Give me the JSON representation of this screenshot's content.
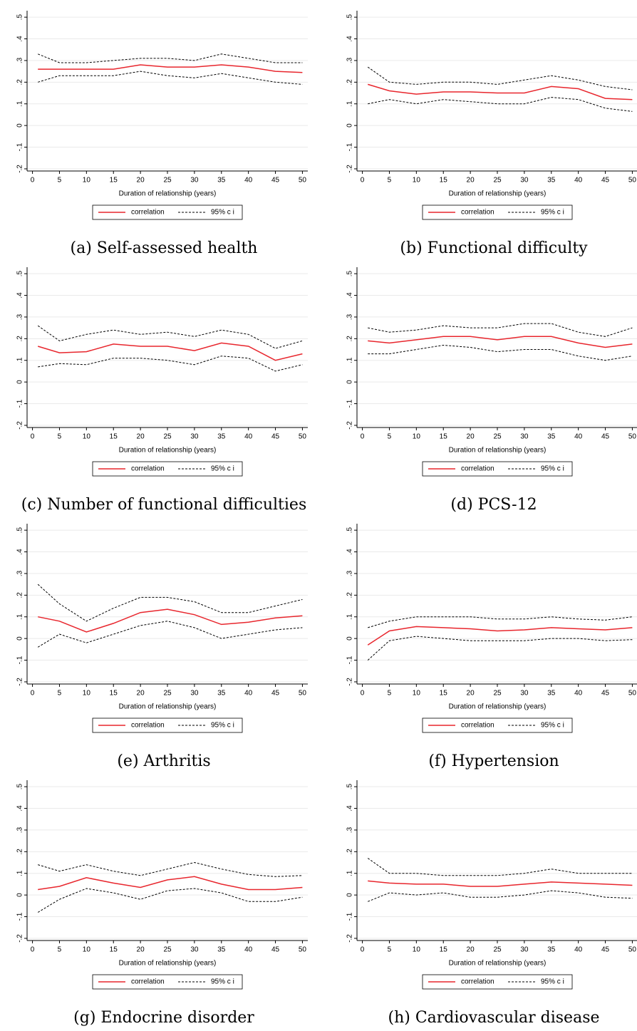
{
  "chart_data": [
    {
      "type": "line",
      "caption": "(a) Self-assessed health",
      "x_label": "Duration of relationship (years)",
      "x": [
        1,
        5,
        10,
        15,
        20,
        25,
        30,
        35,
        40,
        45,
        50
      ],
      "series": [
        {
          "name": "correlation",
          "color": "#e8262d",
          "values": [
            0.26,
            0.26,
            0.26,
            0.26,
            0.28,
            0.27,
            0.27,
            0.28,
            0.27,
            0.25,
            0.245
          ]
        },
        {
          "name": "95% c i",
          "color": "#000000",
          "dashed": true,
          "upper": [
            0.33,
            0.29,
            0.29,
            0.3,
            0.31,
            0.31,
            0.3,
            0.33,
            0.31,
            0.29,
            0.29
          ],
          "lower": [
            0.2,
            0.23,
            0.23,
            0.23,
            0.25,
            0.23,
            0.22,
            0.24,
            0.22,
            0.2,
            0.19
          ]
        }
      ],
      "xlim": [
        -1,
        51
      ],
      "ylim": [
        -0.21,
        0.53
      ],
      "xticks": [
        0,
        5,
        10,
        15,
        20,
        25,
        30,
        35,
        40,
        45,
        50
      ],
      "yticks": [
        {
          "value": -0.2,
          "label": "-.2"
        },
        {
          "value": -0.1,
          "label": "-.1"
        },
        0,
        {
          "value": 0.1,
          "label": ".1"
        },
        {
          "value": 0.2,
          "label": ".2"
        },
        {
          "value": 0.3,
          "label": ".3"
        },
        {
          "value": 0.4,
          "label": ".4"
        },
        {
          "value": 0.5,
          "label": ".5"
        }
      ],
      "grid": true
    },
    {
      "type": "line",
      "caption": "(b) Functional difficulty",
      "x_label": "Duration of relationship (years)",
      "x": [
        1,
        5,
        10,
        15,
        20,
        25,
        30,
        35,
        40,
        45,
        50
      ],
      "series": [
        {
          "name": "correlation",
          "color": "#e8262d",
          "values": [
            0.19,
            0.16,
            0.145,
            0.155,
            0.155,
            0.15,
            0.15,
            0.18,
            0.17,
            0.125,
            0.12
          ]
        },
        {
          "name": "95% c i",
          "color": "#000000",
          "dashed": true,
          "upper": [
            0.27,
            0.2,
            0.19,
            0.2,
            0.2,
            0.19,
            0.21,
            0.23,
            0.21,
            0.18,
            0.165
          ],
          "lower": [
            0.1,
            0.12,
            0.1,
            0.12,
            0.11,
            0.1,
            0.1,
            0.13,
            0.12,
            0.08,
            0.065
          ]
        }
      ],
      "xlim": [
        -1,
        51
      ],
      "ylim": [
        -0.21,
        0.53
      ],
      "xticks": [
        0,
        5,
        10,
        15,
        20,
        25,
        30,
        35,
        40,
        45,
        50
      ],
      "yticks": [
        {
          "value": -0.2,
          "label": "-.2"
        },
        {
          "value": -0.1,
          "label": "-.1"
        },
        0,
        {
          "value": 0.1,
          "label": ".1"
        },
        {
          "value": 0.2,
          "label": ".2"
        },
        {
          "value": 0.3,
          "label": ".3"
        },
        {
          "value": 0.4,
          "label": ".4"
        },
        {
          "value": 0.5,
          "label": ".5"
        }
      ],
      "grid": true
    },
    {
      "type": "line",
      "caption": "(c) Number of functional difficulties",
      "x_label": "Duration of relationship (years)",
      "x": [
        1,
        5,
        10,
        15,
        20,
        25,
        30,
        35,
        40,
        45,
        50
      ],
      "series": [
        {
          "name": "correlation",
          "color": "#e8262d",
          "values": [
            0.165,
            0.135,
            0.14,
            0.175,
            0.165,
            0.165,
            0.145,
            0.18,
            0.165,
            0.1,
            0.13
          ]
        },
        {
          "name": "95% c i",
          "color": "#000000",
          "dashed": true,
          "upper": [
            0.26,
            0.19,
            0.22,
            0.24,
            0.22,
            0.23,
            0.21,
            0.24,
            0.22,
            0.155,
            0.19
          ],
          "lower": [
            0.07,
            0.085,
            0.08,
            0.11,
            0.11,
            0.1,
            0.08,
            0.12,
            0.11,
            0.05,
            0.08
          ]
        }
      ],
      "xlim": [
        -1,
        51
      ],
      "ylim": [
        -0.21,
        0.53
      ],
      "xticks": [
        0,
        5,
        10,
        15,
        20,
        25,
        30,
        35,
        40,
        45,
        50
      ],
      "yticks": [
        {
          "value": -0.2,
          "label": "-.2"
        },
        {
          "value": -0.1,
          "label": "-.1"
        },
        0,
        {
          "value": 0.1,
          "label": ".1"
        },
        {
          "value": 0.2,
          "label": ".2"
        },
        {
          "value": 0.3,
          "label": ".3"
        },
        {
          "value": 0.4,
          "label": ".4"
        },
        {
          "value": 0.5,
          "label": ".5"
        }
      ],
      "grid": true
    },
    {
      "type": "line",
      "caption": "(d) PCS-12",
      "x_label": "Duration of relationship (years)",
      "x": [
        1,
        5,
        10,
        15,
        20,
        25,
        30,
        35,
        40,
        45,
        50
      ],
      "series": [
        {
          "name": "correlation",
          "color": "#e8262d",
          "values": [
            0.19,
            0.18,
            0.195,
            0.21,
            0.21,
            0.195,
            0.21,
            0.21,
            0.18,
            0.16,
            0.175
          ]
        },
        {
          "name": "95% c i",
          "color": "#000000",
          "dashed": true,
          "upper": [
            0.25,
            0.23,
            0.24,
            0.26,
            0.25,
            0.25,
            0.27,
            0.27,
            0.23,
            0.21,
            0.25
          ],
          "lower": [
            0.13,
            0.13,
            0.15,
            0.17,
            0.16,
            0.14,
            0.15,
            0.15,
            0.12,
            0.1,
            0.12
          ]
        }
      ],
      "xlim": [
        -1,
        51
      ],
      "ylim": [
        -0.21,
        0.53
      ],
      "xticks": [
        0,
        5,
        10,
        15,
        20,
        25,
        30,
        35,
        40,
        45,
        50
      ],
      "yticks": [
        {
          "value": -0.2,
          "label": "-.2"
        },
        {
          "value": -0.1,
          "label": "-.1"
        },
        0,
        {
          "value": 0.1,
          "label": ".1"
        },
        {
          "value": 0.2,
          "label": ".2"
        },
        {
          "value": 0.3,
          "label": ".3"
        },
        {
          "value": 0.4,
          "label": ".4"
        },
        {
          "value": 0.5,
          "label": ".5"
        }
      ],
      "grid": true
    },
    {
      "type": "line",
      "caption": "(e) Arthritis",
      "x_label": "Duration of relationship (years)",
      "x": [
        1,
        5,
        10,
        15,
        20,
        25,
        30,
        35,
        40,
        45,
        50
      ],
      "series": [
        {
          "name": "correlation",
          "color": "#e8262d",
          "values": [
            0.1,
            0.08,
            0.03,
            0.07,
            0.12,
            0.135,
            0.11,
            0.065,
            0.075,
            0.095,
            0.105
          ]
        },
        {
          "name": "95% c i",
          "color": "#000000",
          "dashed": true,
          "upper": [
            0.25,
            0.16,
            0.08,
            0.14,
            0.19,
            0.19,
            0.17,
            0.12,
            0.12,
            0.15,
            0.18
          ],
          "lower": [
            -0.04,
            0.02,
            -0.02,
            0.02,
            0.06,
            0.08,
            0.05,
            0,
            0.02,
            0.04,
            0.05
          ]
        }
      ],
      "xlim": [
        -1,
        51
      ],
      "ylim": [
        -0.21,
        0.53
      ],
      "xticks": [
        0,
        5,
        10,
        15,
        20,
        25,
        30,
        35,
        40,
        45,
        50
      ],
      "yticks": [
        {
          "value": -0.2,
          "label": "-.2"
        },
        {
          "value": -0.1,
          "label": "-.1"
        },
        0,
        {
          "value": 0.1,
          "label": ".1"
        },
        {
          "value": 0.2,
          "label": ".2"
        },
        {
          "value": 0.3,
          "label": ".3"
        },
        {
          "value": 0.4,
          "label": ".4"
        },
        {
          "value": 0.5,
          "label": ".5"
        }
      ],
      "grid": true
    },
    {
      "type": "line",
      "caption": "(f) Hypertension",
      "x_label": "Duration of relationship (years)",
      "x": [
        1,
        5,
        10,
        15,
        20,
        25,
        30,
        35,
        40,
        45,
        50
      ],
      "series": [
        {
          "name": "correlation",
          "color": "#e8262d",
          "values": [
            -0.03,
            0.035,
            0.055,
            0.05,
            0.045,
            0.035,
            0.04,
            0.05,
            0.045,
            0.04,
            0.05
          ]
        },
        {
          "name": "95% c i",
          "color": "#000000",
          "dashed": true,
          "upper": [
            0.05,
            0.08,
            0.1,
            0.1,
            0.1,
            0.09,
            0.09,
            0.1,
            0.09,
            0.085,
            0.1
          ],
          "lower": [
            -0.1,
            -0.01,
            0.01,
            0,
            -0.01,
            -0.01,
            -0.01,
            0,
            0,
            -0.01,
            -0.005
          ]
        }
      ],
      "xlim": [
        -1,
        51
      ],
      "ylim": [
        -0.21,
        0.53
      ],
      "xticks": [
        0,
        5,
        10,
        15,
        20,
        25,
        30,
        35,
        40,
        45,
        50
      ],
      "yticks": [
        {
          "value": -0.2,
          "label": "-.2"
        },
        {
          "value": -0.1,
          "label": "-.1"
        },
        0,
        {
          "value": 0.1,
          "label": ".1"
        },
        {
          "value": 0.2,
          "label": ".2"
        },
        {
          "value": 0.3,
          "label": ".3"
        },
        {
          "value": 0.4,
          "label": ".4"
        },
        {
          "value": 0.5,
          "label": ".5"
        }
      ],
      "grid": true
    },
    {
      "type": "line",
      "caption": "(g) Endocrine disorder",
      "x_label": "Duration of relationship (years)",
      "x": [
        1,
        5,
        10,
        15,
        20,
        25,
        30,
        35,
        40,
        45,
        50
      ],
      "series": [
        {
          "name": "correlation",
          "color": "#e8262d",
          "values": [
            0.025,
            0.04,
            0.08,
            0.055,
            0.035,
            0.07,
            0.085,
            0.05,
            0.025,
            0.025,
            0.035
          ]
        },
        {
          "name": "95% c i",
          "color": "#000000",
          "dashed": true,
          "upper": [
            0.14,
            0.11,
            0.14,
            0.11,
            0.09,
            0.12,
            0.15,
            0.12,
            0.095,
            0.085,
            0.09
          ],
          "lower": [
            -0.08,
            -0.02,
            0.03,
            0.01,
            -0.02,
            0.02,
            0.03,
            0.01,
            -0.03,
            -0.03,
            -0.01
          ]
        }
      ],
      "xlim": [
        -1,
        51
      ],
      "ylim": [
        -0.21,
        0.53
      ],
      "xticks": [
        0,
        5,
        10,
        15,
        20,
        25,
        30,
        35,
        40,
        45,
        50
      ],
      "yticks": [
        {
          "value": -0.2,
          "label": "-.2"
        },
        {
          "value": -0.1,
          "label": "-.1"
        },
        0,
        {
          "value": 0.1,
          "label": ".1"
        },
        {
          "value": 0.2,
          "label": ".2"
        },
        {
          "value": 0.3,
          "label": ".3"
        },
        {
          "value": 0.4,
          "label": ".4"
        },
        {
          "value": 0.5,
          "label": ".5"
        }
      ],
      "grid": true
    },
    {
      "type": "line",
      "caption": "(h) Cardiovascular disease",
      "x_label": "Duration of relationship (years)",
      "x": [
        1,
        5,
        10,
        15,
        20,
        25,
        30,
        35,
        40,
        45,
        50
      ],
      "series": [
        {
          "name": "correlation",
          "color": "#e8262d",
          "values": [
            0.065,
            0.055,
            0.05,
            0.05,
            0.04,
            0.04,
            0.05,
            0.06,
            0.055,
            0.05,
            0.045
          ]
        },
        {
          "name": "95% c i",
          "color": "#000000",
          "dashed": true,
          "upper": [
            0.17,
            0.1,
            0.1,
            0.09,
            0.09,
            0.09,
            0.1,
            0.12,
            0.1,
            0.1,
            0.1
          ],
          "lower": [
            -0.03,
            0.01,
            0,
            0.01,
            -0.01,
            -0.01,
            0,
            0.02,
            0.01,
            -0.01,
            -0.015
          ]
        }
      ],
      "xlim": [
        -1,
        51
      ],
      "ylim": [
        -0.21,
        0.53
      ],
      "xticks": [
        0,
        5,
        10,
        15,
        20,
        25,
        30,
        35,
        40,
        45,
        50
      ],
      "yticks": [
        {
          "value": -0.2,
          "label": "-.2"
        },
        {
          "value": -0.1,
          "label": "-.1"
        },
        0,
        {
          "value": 0.1,
          "label": ".1"
        },
        {
          "value": 0.2,
          "label": ".2"
        },
        {
          "value": 0.3,
          "label": ".3"
        },
        {
          "value": 0.4,
          "label": ".4"
        },
        {
          "value": 0.5,
          "label": ".5"
        }
      ],
      "grid": true
    }
  ]
}
